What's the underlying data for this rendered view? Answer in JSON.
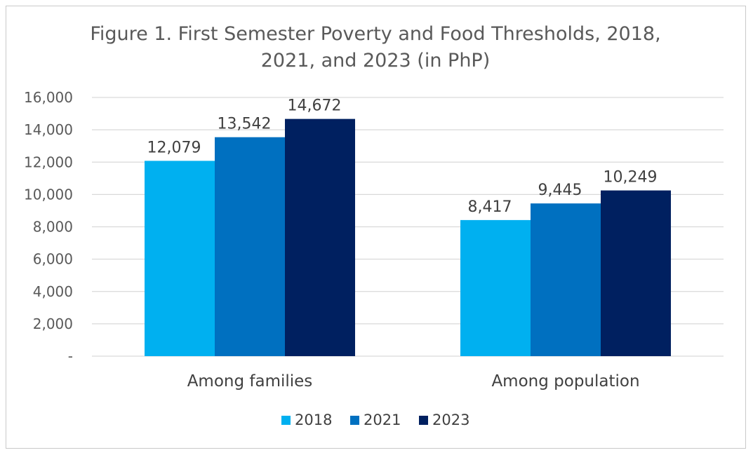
{
  "chart_data": {
    "type": "bar",
    "title": "Figure 1. First Semester Poverty and Food Thresholds, 2018, 2021, and 2023 (in PhP)",
    "title_lines": [
      "Figure 1. First Semester Poverty and Food Thresholds, 2018,",
      "2021, and 2023 (in PhP)"
    ],
    "categories": [
      "Among families",
      "Among population"
    ],
    "series": [
      {
        "name": "2018",
        "color": "#00B0F0",
        "values": [
          12079,
          8417
        ],
        "labels": [
          "12,079",
          "8,417"
        ]
      },
      {
        "name": "2021",
        "color": "#0070C0",
        "values": [
          13542,
          9445
        ],
        "labels": [
          "13,542",
          "9,445"
        ]
      },
      {
        "name": "2023",
        "color": "#002060",
        "values": [
          14672,
          10249
        ],
        "labels": [
          "14,672",
          "10,249"
        ]
      }
    ],
    "ylim": [
      0,
      16000
    ],
    "yticks": [
      0,
      2000,
      4000,
      6000,
      8000,
      10000,
      12000,
      14000,
      16000
    ],
    "ytick_labels": [
      "-",
      "2,000",
      "4,000",
      "6,000",
      "8,000",
      "10,000",
      "12,000",
      "14,000",
      "16,000"
    ],
    "grid": true,
    "legend_position": "bottom"
  }
}
